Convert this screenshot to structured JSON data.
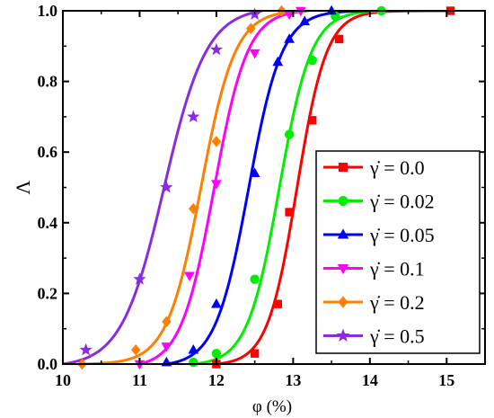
{
  "chart_data": {
    "type": "line",
    "xlabel": "φ (%)",
    "ylabel": "Λ",
    "xlim": [
      10,
      15.5
    ],
    "ylim": [
      0,
      1.0
    ],
    "x_ticks": [
      10,
      11,
      12,
      13,
      14,
      15
    ],
    "y_ticks": [
      0.0,
      0.2,
      0.4,
      0.6,
      0.8,
      1.0
    ],
    "x_tick_labels": [
      "10",
      "11",
      "12",
      "13",
      "14",
      "15"
    ],
    "y_tick_labels": [
      "0.0",
      "0.2",
      "0.4",
      "0.6",
      "0.8",
      "1.0"
    ],
    "legend_position": "bottom-right",
    "grid": false,
    "series": [
      {
        "name": "γ̇ = 0.0",
        "color": "#ff0000",
        "marker": "square",
        "points": [
          [
            12.0,
            0.0
          ],
          [
            12.5,
            0.03
          ],
          [
            12.8,
            0.17
          ],
          [
            12.95,
            0.43
          ],
          [
            13.25,
            0.69
          ],
          [
            13.6,
            0.92
          ],
          [
            15.05,
            1.0
          ]
        ],
        "fit": {
          "x0": 13.05,
          "k": 5.2,
          "start": 12.0,
          "end": 15.1
        }
      },
      {
        "name": "γ̇ = 0.02",
        "color": "#00ee00",
        "marker": "circle",
        "points": [
          [
            11.7,
            0.005
          ],
          [
            12.0,
            0.03
          ],
          [
            12.5,
            0.24
          ],
          [
            12.95,
            0.65
          ],
          [
            13.25,
            0.86
          ],
          [
            13.55,
            0.985
          ],
          [
            14.15,
            1.0
          ]
        ],
        "fit": {
          "x0": 12.82,
          "k": 4.8,
          "start": 11.7,
          "end": 14.2
        }
      },
      {
        "name": "γ̇ = 0.05",
        "color": "#0000ff",
        "marker": "triangle-up",
        "points": [
          [
            11.35,
            0.005
          ],
          [
            11.7,
            0.04
          ],
          [
            12.0,
            0.17
          ],
          [
            12.5,
            0.54
          ],
          [
            12.8,
            0.855
          ],
          [
            12.95,
            0.92
          ],
          [
            13.15,
            0.97
          ],
          [
            13.5,
            1.0
          ]
        ],
        "fit": {
          "x0": 12.42,
          "k": 4.6,
          "start": 11.35,
          "end": 14.0
        }
      },
      {
        "name": "γ̇ = 0.1",
        "color": "#ff00ff",
        "marker": "triangle-down",
        "points": [
          [
            11.0,
            0.0
          ],
          [
            11.35,
            0.05
          ],
          [
            11.65,
            0.25
          ],
          [
            12.0,
            0.51
          ],
          [
            12.5,
            0.88
          ],
          [
            12.95,
            0.99
          ],
          [
            13.1,
            1.0
          ]
        ],
        "fit": {
          "x0": 11.97,
          "k": 4.6,
          "start": 11.0,
          "end": 13.2
        }
      },
      {
        "name": "γ̇ = 0.2",
        "color": "#ff8000",
        "marker": "diamond",
        "points": [
          [
            10.25,
            0.0
          ],
          [
            10.95,
            0.04
          ],
          [
            11.35,
            0.12
          ],
          [
            11.7,
            0.44
          ],
          [
            12.0,
            0.63
          ],
          [
            12.45,
            0.95
          ],
          [
            12.85,
            1.0
          ]
        ],
        "fit": {
          "x0": 11.8,
          "k": 4.5,
          "start": 10.2,
          "end": 13.2
        }
      },
      {
        "name": "γ̇ = 0.5",
        "color": "#8a2be2",
        "marker": "star",
        "points": [
          [
            10.3,
            0.04
          ],
          [
            11.0,
            0.24
          ],
          [
            11.35,
            0.5
          ],
          [
            11.7,
            0.7
          ],
          [
            12.0,
            0.89
          ],
          [
            12.5,
            0.99
          ]
        ],
        "fit": {
          "x0": 11.32,
          "k": 3.6,
          "start": 10.0,
          "end": 12.6
        }
      }
    ]
  }
}
